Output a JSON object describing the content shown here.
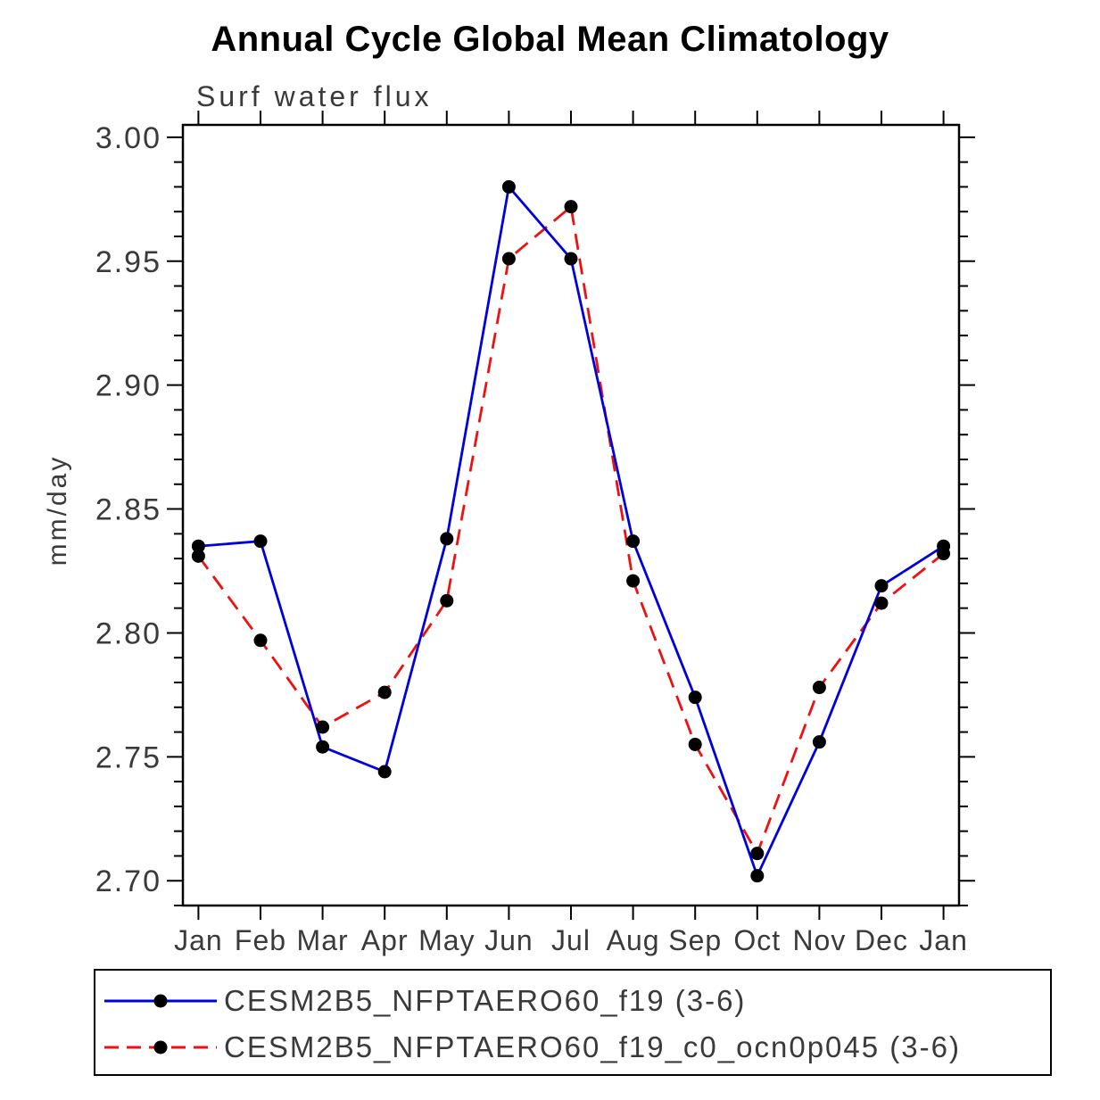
{
  "chart_data": {
    "type": "line",
    "title": "Annual Cycle Global Mean Climatology",
    "subtitle": "Surf water flux",
    "ylabel": "mm/day",
    "x_tick_labels": [
      "Jan",
      "Feb",
      "Mar",
      "Apr",
      "May",
      "Jun",
      "Jul",
      "Aug",
      "Sep",
      "Oct",
      "Nov",
      "Dec",
      "Jan"
    ],
    "y_ticks": [
      2.7,
      2.75,
      2.8,
      2.85,
      2.9,
      2.95,
      3.0
    ],
    "y_tick_labels": [
      "2.70",
      "2.75",
      "2.80",
      "2.85",
      "2.90",
      "2.95",
      "3.00"
    ],
    "ylim": [
      2.69,
      3.005
    ],
    "y_minor_step": 0.01,
    "grid": false,
    "legend_position": "bottom",
    "marker_color": "#000000",
    "series": [
      {
        "name": "CESM2B5_NFPTAERO60_f19 (3-6)",
        "color": "#0000dd",
        "style": "solid",
        "values": [
          2.835,
          2.837,
          2.754,
          2.744,
          2.838,
          2.98,
          2.951,
          2.837,
          2.774,
          2.702,
          2.756,
          2.819,
          2.835
        ]
      },
      {
        "name": "CESM2B5_NFPTAERO60_f19_c0_ocn0p045 (3-6)",
        "color": "#ee1111",
        "style": "dashed",
        "values": [
          2.831,
          2.797,
          2.762,
          2.776,
          2.813,
          2.951,
          2.972,
          2.821,
          2.755,
          2.711,
          2.778,
          2.812,
          2.832
        ]
      }
    ]
  }
}
